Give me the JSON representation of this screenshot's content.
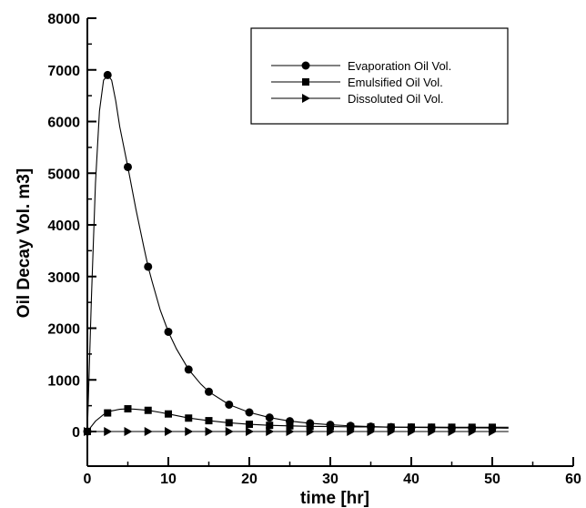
{
  "chart_data": {
    "type": "line",
    "title": "",
    "xlabel": "time [hr]",
    "ylabel": "Oil Decay Vol. m3]",
    "xlim": [
      0,
      60
    ],
    "ylim": [
      0,
      8000
    ],
    "x_ticks": [
      "0",
      "10",
      "20",
      "30",
      "40",
      "50",
      "60"
    ],
    "y_ticks": [
      "0",
      "1000",
      "2000",
      "3000",
      "4000",
      "5000",
      "6000",
      "7000",
      "8000"
    ],
    "grid": false,
    "legend_position": "top-right",
    "series": [
      {
        "name": "Evaporation Oil Vol.",
        "marker": "circle",
        "markers": [
          [
            0,
            0
          ],
          [
            2.5,
            6900
          ],
          [
            5,
            5120
          ],
          [
            7.5,
            3190
          ],
          [
            10,
            1930
          ],
          [
            12.5,
            1200
          ],
          [
            15,
            770
          ],
          [
            17.5,
            520
          ],
          [
            20,
            370
          ],
          [
            22.5,
            270
          ],
          [
            25,
            200
          ],
          [
            27.5,
            160
          ],
          [
            30,
            130
          ],
          [
            32.5,
            110
          ],
          [
            35,
            95
          ],
          [
            37.5,
            85
          ],
          [
            40,
            80
          ],
          [
            42.5,
            75
          ],
          [
            45,
            72
          ],
          [
            47.5,
            70
          ],
          [
            50,
            68
          ]
        ],
        "curve": [
          [
            0,
            0
          ],
          [
            0.5,
            2600
          ],
          [
            1,
            4800
          ],
          [
            1.5,
            6200
          ],
          [
            2,
            6800
          ],
          [
            2.5,
            6900
          ],
          [
            3,
            6800
          ],
          [
            3.5,
            6400
          ],
          [
            4,
            5900
          ],
          [
            5,
            5120
          ],
          [
            6,
            4300
          ],
          [
            7,
            3550
          ],
          [
            7.5,
            3190
          ],
          [
            8,
            2900
          ],
          [
            9,
            2350
          ],
          [
            10,
            1930
          ],
          [
            11,
            1600
          ],
          [
            12.5,
            1200
          ],
          [
            14,
            920
          ],
          [
            15,
            770
          ],
          [
            17.5,
            520
          ],
          [
            20,
            370
          ],
          [
            22.5,
            270
          ],
          [
            25,
            200
          ],
          [
            27.5,
            160
          ],
          [
            30,
            130
          ],
          [
            32.5,
            110
          ],
          [
            35,
            95
          ],
          [
            37.5,
            85
          ],
          [
            40,
            80
          ],
          [
            42.5,
            75
          ],
          [
            45,
            72
          ],
          [
            47.5,
            70
          ],
          [
            50,
            68
          ],
          [
            52,
            66
          ]
        ]
      },
      {
        "name": "Emulsified   Oil Vol.",
        "marker": "square",
        "markers": [
          [
            0,
            0
          ],
          [
            2.5,
            360
          ],
          [
            5,
            440
          ],
          [
            7.5,
            410
          ],
          [
            10,
            340
          ],
          [
            12.5,
            260
          ],
          [
            15,
            210
          ],
          [
            17.5,
            170
          ],
          [
            20,
            140
          ],
          [
            22.5,
            120
          ],
          [
            25,
            110
          ],
          [
            27.5,
            100
          ],
          [
            30,
            95
          ],
          [
            32.5,
            90
          ],
          [
            35,
            88
          ],
          [
            37.5,
            85
          ],
          [
            40,
            85
          ],
          [
            42.5,
            84
          ],
          [
            45,
            83
          ],
          [
            47.5,
            82
          ],
          [
            50,
            82
          ]
        ],
        "curve": [
          [
            0,
            0
          ],
          [
            1,
            200
          ],
          [
            2,
            330
          ],
          [
            3,
            400
          ],
          [
            4,
            430
          ],
          [
            5,
            440
          ],
          [
            6,
            430
          ],
          [
            7.5,
            410
          ],
          [
            9,
            370
          ],
          [
            10,
            340
          ],
          [
            12.5,
            260
          ],
          [
            15,
            210
          ],
          [
            17.5,
            170
          ],
          [
            20,
            140
          ],
          [
            22.5,
            120
          ],
          [
            25,
            110
          ],
          [
            27.5,
            100
          ],
          [
            30,
            95
          ],
          [
            32.5,
            90
          ],
          [
            35,
            88
          ],
          [
            37.5,
            85
          ],
          [
            40,
            85
          ],
          [
            42.5,
            84
          ],
          [
            45,
            83
          ],
          [
            47.5,
            82
          ],
          [
            50,
            82
          ],
          [
            52,
            82
          ]
        ]
      },
      {
        "name": "Dissoluted    Oil Vol.",
        "marker": "triangle-right",
        "markers": [
          [
            0,
            0
          ],
          [
            2.5,
            0
          ],
          [
            5,
            0
          ],
          [
            7.5,
            0
          ],
          [
            10,
            0
          ],
          [
            12.5,
            0
          ],
          [
            15,
            0
          ],
          [
            17.5,
            0
          ],
          [
            20,
            0
          ],
          [
            22.5,
            0
          ],
          [
            25,
            0
          ],
          [
            27.5,
            0
          ],
          [
            30,
            0
          ],
          [
            32.5,
            0
          ],
          [
            35,
            0
          ],
          [
            37.5,
            0
          ],
          [
            40,
            0
          ],
          [
            42.5,
            0
          ],
          [
            45,
            0
          ],
          [
            47.5,
            0
          ],
          [
            50,
            0
          ]
        ],
        "curve": [
          [
            0,
            0
          ],
          [
            52,
            0
          ]
        ]
      }
    ]
  }
}
